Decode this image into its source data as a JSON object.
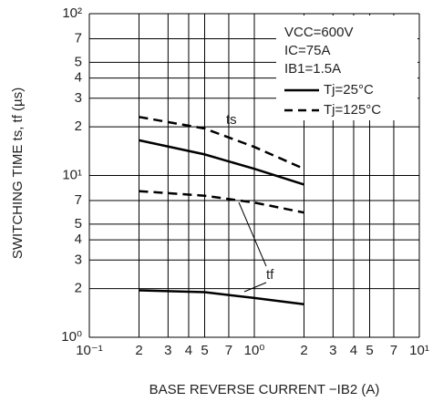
{
  "chart_data": {
    "type": "line",
    "log_x": true,
    "log_y": true,
    "grid": true,
    "y_label": "SWITCHING TIME   ts, tf (µs)",
    "x_label": "BASE REVERSE CURRENT   −IB2 (A)",
    "xlim": [
      0.1,
      10
    ],
    "ylim": [
      1,
      100
    ],
    "xticks": [
      {
        "value": 0.1,
        "label": "10⁻¹"
      },
      {
        "value": 0.2,
        "label": "2"
      },
      {
        "value": 0.3,
        "label": "3"
      },
      {
        "value": 0.4,
        "label": "4"
      },
      {
        "value": 0.5,
        "label": "5"
      },
      {
        "value": 0.7,
        "label": "7"
      },
      {
        "value": 1,
        "label": "10⁰"
      },
      2,
      3,
      4,
      5,
      7,
      {
        "value": 10,
        "label": "10¹"
      }
    ],
    "yticks": [
      {
        "value": 1,
        "label": "10⁰"
      },
      2,
      3,
      4,
      5,
      7,
      {
        "value": 10,
        "label": "10¹"
      },
      {
        "value": 20,
        "label": "2"
      },
      {
        "value": 30,
        "label": "3"
      },
      {
        "value": 40,
        "label": "4"
      },
      {
        "value": 50,
        "label": "5"
      },
      {
        "value": 70,
        "label": "7"
      },
      {
        "value": 100,
        "label": "10²"
      }
    ],
    "conditions": [
      "VCC=600V",
      "IC=75A",
      "IB1=1.5A"
    ],
    "x": [
      0.2,
      0.5,
      1,
      2
    ],
    "series": [
      {
        "name": "Tj=25°C",
        "dash": false,
        "color": "#000000",
        "values": [
          16.5,
          13.5,
          11,
          8.8
        ]
      },
      {
        "name": "Tj=125°C",
        "dash": true,
        "color": "#000000",
        "values": [
          23,
          19.5,
          15,
          11
        ]
      },
      {
        "dash": false,
        "color": "#000000",
        "values": [
          1.95,
          1.9,
          1.75,
          1.6
        ]
      },
      {
        "dash": true,
        "color": "#000000",
        "values": [
          8,
          7.5,
          6.8,
          5.9
        ]
      }
    ],
    "annotations": [
      "ts",
      "tf"
    ]
  }
}
